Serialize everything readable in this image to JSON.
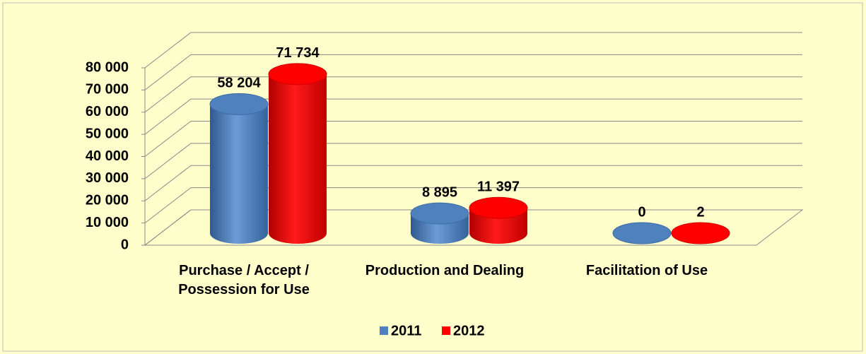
{
  "chart_data": {
    "type": "bar3d",
    "categories": [
      "Purchase / Accept / Possession for Use",
      "Production and Dealing",
      "Facilitation of Use"
    ],
    "series": [
      {
        "name": "2011",
        "color": "#4f81bd",
        "values": [
          58204,
          8895,
          0
        ],
        "value_labels": [
          "58 204",
          "8 895",
          "0"
        ]
      },
      {
        "name": "2012",
        "color": "#ff0000",
        "values": [
          71734,
          11397,
          2
        ],
        "value_labels": [
          "71 734",
          "11 397",
          "2"
        ]
      }
    ],
    "ylim": [
      0,
      80000
    ],
    "yticks": [
      {
        "value": 0,
        "label": "0"
      },
      {
        "value": 10000,
        "label": "10 000"
      },
      {
        "value": 20000,
        "label": "20 000"
      },
      {
        "value": 30000,
        "label": "30 000"
      },
      {
        "value": 40000,
        "label": "40 000"
      },
      {
        "value": 50000,
        "label": "50 000"
      },
      {
        "value": 60000,
        "label": "60 000"
      },
      {
        "value": 70000,
        "label": "70 000"
      },
      {
        "value": 80000,
        "label": "80 000"
      }
    ],
    "grid": true,
    "legend": "bottom"
  }
}
